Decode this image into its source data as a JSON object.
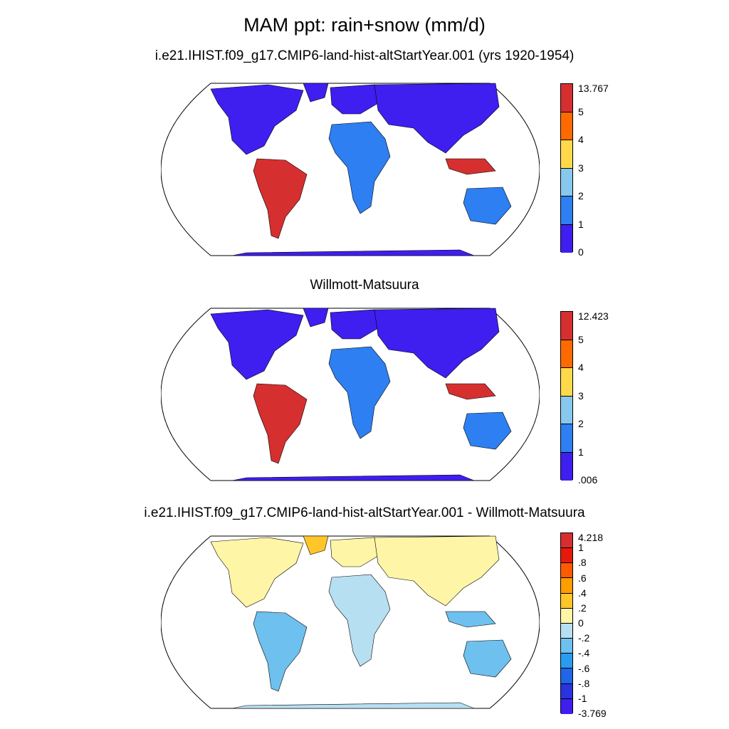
{
  "page_title": "MAM ppt: rain+snow (mm/d)",
  "panels": [
    {
      "title": "i.e21.IHIST.f09_g17.CMIP6-land-hist-altStartYear.001 (yrs 1920-1954)",
      "colorbar": {
        "labels": [
          "13.767",
          "5",
          "4",
          "3",
          "2",
          "1",
          "0"
        ],
        "colors": [
          "#d62f2f",
          "#ff6a00",
          "#ffd94a",
          "#88c8ee",
          "#2d7ff2",
          "#3f1ef0"
        ]
      }
    },
    {
      "title": "Willmott-Matsuura",
      "colorbar": {
        "labels": [
          "12.423",
          "5",
          "4",
          "3",
          "2",
          "1",
          ".006"
        ],
        "colors": [
          "#d62f2f",
          "#ff6a00",
          "#ffd94a",
          "#88c8ee",
          "#2d7ff2",
          "#3f1ef0"
        ]
      }
    },
    {
      "title": "i.e21.IHIST.f09_g17.CMIP6-land-hist-altStartYear.001 - Willmott-Matsuura",
      "colorbar": {
        "labels": [
          "4.218",
          "1",
          ".8",
          ".6",
          ".4",
          ".2",
          "0",
          "-.2",
          "-.4",
          "-.6",
          "-.8",
          "-1",
          "-3.769"
        ],
        "colors": [
          "#d62f2f",
          "#e61a0a",
          "#ff5a00",
          "#ff9c00",
          "#ffc62a",
          "#fff5a6",
          "#b7dff2",
          "#6ec0ee",
          "#2a9cf0",
          "#1f66e8",
          "#2a33e0",
          "#3f1ef0"
        ]
      }
    }
  ]
}
